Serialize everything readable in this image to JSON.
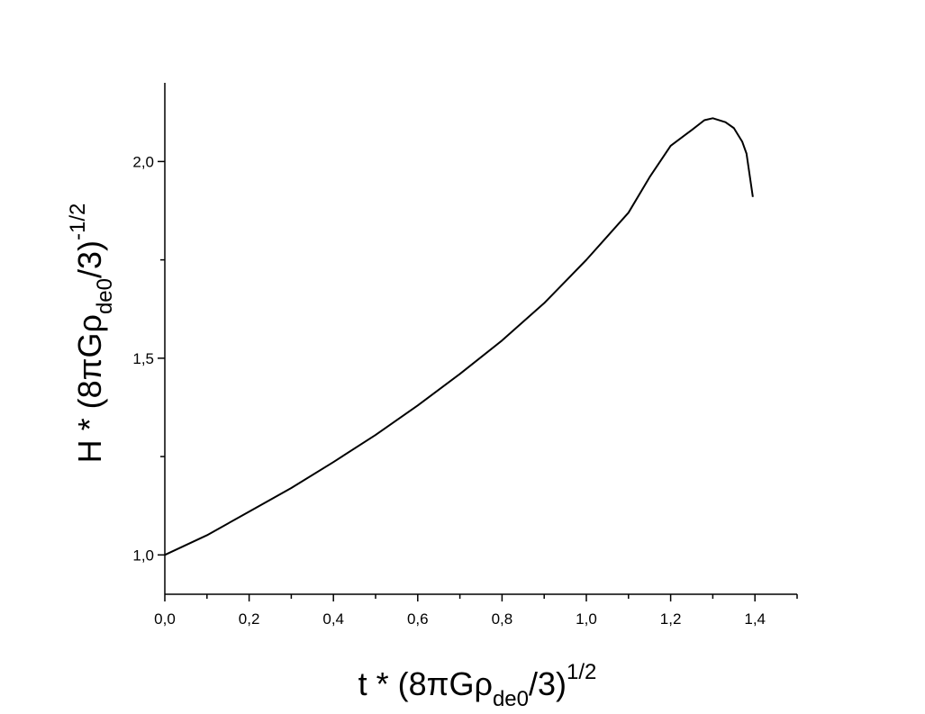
{
  "chart_data": {
    "type": "line",
    "xlabel": [
      "t * (8πGρ",
      "de0",
      "/3)",
      "1/2"
    ],
    "ylabel": [
      "H * (8πGρ",
      "de0",
      "/3)",
      "-1/2"
    ],
    "x": [
      0,
      0.1,
      0.2,
      0.3,
      0.4,
      0.5,
      0.6,
      0.7,
      0.8,
      0.9,
      1.0,
      1.05,
      1.1,
      1.15,
      1.2,
      1.25,
      1.28,
      1.3,
      1.33,
      1.35,
      1.37,
      1.38,
      1.395
    ],
    "values": [
      1.0,
      1.05,
      1.11,
      1.17,
      1.236,
      1.305,
      1.38,
      1.46,
      1.545,
      1.64,
      1.75,
      1.81,
      1.87,
      1.96,
      2.04,
      2.08,
      2.105,
      2.11,
      2.1,
      2.085,
      2.05,
      2.02,
      1.91
    ],
    "color": "#000000",
    "xlim": [
      0,
      1.5
    ],
    "ylim": [
      0.9,
      2.2
    ],
    "xticks": [
      {
        "value": 0,
        "label": "0,0"
      },
      {
        "value": 0.2,
        "label": "0,2"
      },
      {
        "value": 0.4,
        "label": "0,4"
      },
      {
        "value": 0.6,
        "label": "0,6"
      },
      {
        "value": 0.8,
        "label": "0,8"
      },
      {
        "value": 1.0,
        "label": "1,0"
      },
      {
        "value": 1.2,
        "label": "1,2"
      },
      {
        "value": 1.4,
        "label": "1,4"
      }
    ],
    "xminorticks": [
      0.1,
      0.3,
      0.5,
      0.7,
      0.9,
      1.1,
      1.3,
      1.5
    ],
    "yticks": [
      {
        "value": 1.0,
        "label": "1,0"
      },
      {
        "value": 1.5,
        "label": "1,5"
      },
      {
        "value": 2.0,
        "label": "2,0"
      }
    ],
    "yminorticks": [
      1.25,
      1.75
    ]
  }
}
